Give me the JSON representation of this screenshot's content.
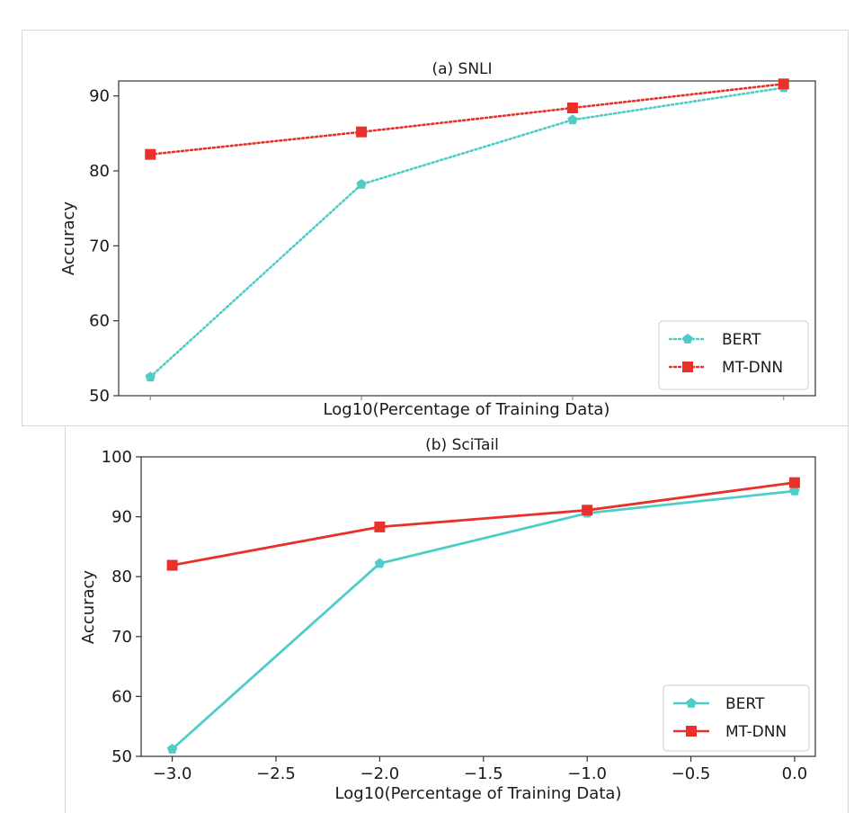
{
  "chart_data": [
    {
      "type": "line",
      "title": "(a) SNLI",
      "xlabel": "Log10(Percentage of Training Data)",
      "ylabel": "Accuracy",
      "x": [
        -3.0,
        -2.0,
        -1.0,
        0.0
      ],
      "xlim": [
        -3.15,
        0.15
      ],
      "ylim": [
        50,
        92
      ],
      "yticks": [
        "50",
        "60",
        "70",
        "80",
        "90"
      ],
      "xticks": [],
      "line_style": "dotted",
      "legend_position": "lower-right",
      "grid": false,
      "series": [
        {
          "name": "BERT",
          "values": [
            52.5,
            78.2,
            86.8,
            91.1
          ],
          "color": "#4ecdc8",
          "marker": "pentagon"
        },
        {
          "name": "MT-DNN",
          "values": [
            82.2,
            85.2,
            88.4,
            91.6
          ],
          "color": "#e8312a",
          "marker": "square"
        }
      ]
    },
    {
      "type": "line",
      "title": "(b) SciTail",
      "xlabel": "Log10(Percentage of Training Data)",
      "ylabel": "Accuracy",
      "x": [
        -3.0,
        -2.0,
        -1.0,
        0.0
      ],
      "xlim": [
        -3.15,
        0.1
      ],
      "ylim": [
        50,
        100
      ],
      "yticks": [
        "50",
        "60",
        "70",
        "80",
        "90",
        "100"
      ],
      "xticks": [
        "−3.0",
        "−2.5",
        "−2.0",
        "−1.5",
        "−1.0",
        "−0.5",
        "0.0"
      ],
      "line_style": "solid",
      "legend_position": "lower-right",
      "grid": false,
      "series": [
        {
          "name": "BERT",
          "values": [
            51.2,
            82.2,
            90.6,
            94.3
          ],
          "color": "#4ecdc8",
          "marker": "pentagon"
        },
        {
          "name": "MT-DNN",
          "values": [
            81.9,
            88.3,
            91.1,
            95.7
          ],
          "color": "#e8312a",
          "marker": "square"
        }
      ]
    }
  ]
}
